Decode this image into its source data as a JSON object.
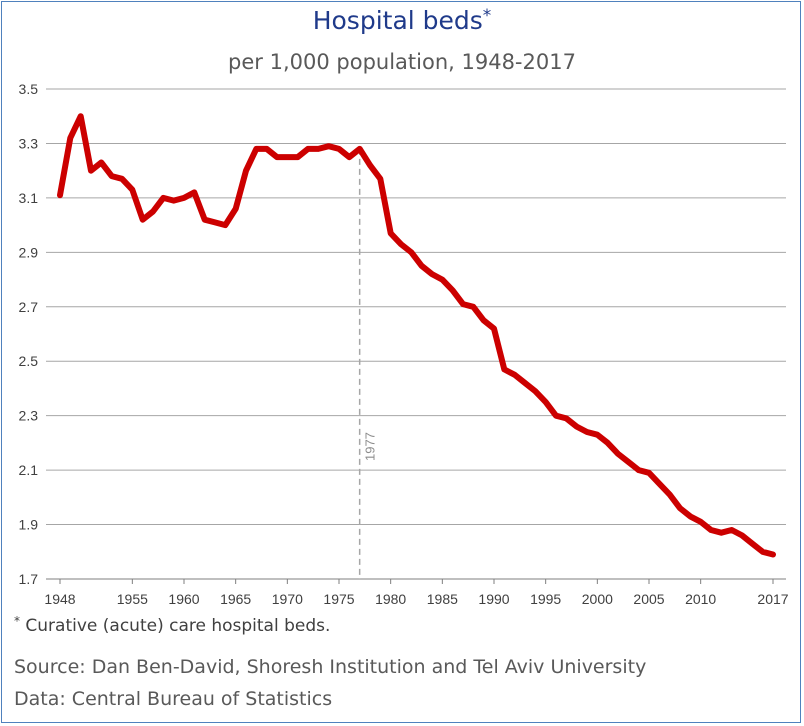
{
  "chart_data": {
    "type": "line",
    "title": "Hospital beds",
    "title_mark": "*",
    "subtitle": "per 1,000 population, 1948-2017",
    "ylim": [
      1.7,
      3.5
    ],
    "yticks": [
      "1.7",
      "1.9",
      "2.1",
      "2.3",
      "2.5",
      "2.7",
      "2.9",
      "3.1",
      "3.3",
      "3.5"
    ],
    "xlim": [
      1948,
      2017
    ],
    "xticks": [
      "1948",
      "1955",
      "1960",
      "1965",
      "1970",
      "1975",
      "1980",
      "1985",
      "1990",
      "1995",
      "2000",
      "2005",
      "2010",
      "2017"
    ],
    "grid": "horizontal",
    "line_color": "#cc0000",
    "reference_line": {
      "x": 1977,
      "label": "1977"
    },
    "series": [
      {
        "x": [
          1948,
          1949,
          1950,
          1951,
          1952,
          1953,
          1954,
          1955,
          1956,
          1957,
          1958,
          1959,
          1960,
          1961,
          1962,
          1963,
          1964,
          1965,
          1966,
          1967,
          1968,
          1969,
          1970,
          1971,
          1972,
          1973,
          1974,
          1975,
          1976,
          1977,
          1978,
          1979,
          1980,
          1981,
          1982,
          1983,
          1984,
          1985,
          1986,
          1987,
          1988,
          1989,
          1990,
          1991,
          1992,
          1993,
          1994,
          1995,
          1996,
          1997,
          1998,
          1999,
          2000,
          2001,
          2002,
          2003,
          2004,
          2005,
          2006,
          2007,
          2008,
          2009,
          2010,
          2011,
          2012,
          2013,
          2014,
          2015,
          2016,
          2017
        ],
        "y": [
          3.11,
          3.32,
          3.4,
          3.2,
          3.23,
          3.18,
          3.17,
          3.13,
          3.02,
          3.05,
          3.1,
          3.09,
          3.1,
          3.12,
          3.02,
          3.01,
          3.0,
          3.06,
          3.2,
          3.28,
          3.28,
          3.25,
          3.25,
          3.25,
          3.28,
          3.28,
          3.29,
          3.28,
          3.25,
          3.28,
          3.22,
          3.17,
          2.97,
          2.93,
          2.9,
          2.85,
          2.82,
          2.8,
          2.76,
          2.71,
          2.7,
          2.65,
          2.62,
          2.47,
          2.45,
          2.42,
          2.39,
          2.35,
          2.3,
          2.29,
          2.26,
          2.24,
          2.23,
          2.2,
          2.16,
          2.13,
          2.1,
          2.09,
          2.05,
          2.01,
          1.96,
          1.93,
          1.91,
          1.88,
          1.87,
          1.88,
          1.86,
          1.83,
          1.8,
          1.79
        ]
      }
    ]
  },
  "footnote": {
    "mark": "*",
    "text": " Curative (acute) care hospital beds."
  },
  "source": "Source: Dan Ben-David, Shoresh Institution and Tel Aviv University",
  "data_note": "Data: Central Bureau of Statistics"
}
